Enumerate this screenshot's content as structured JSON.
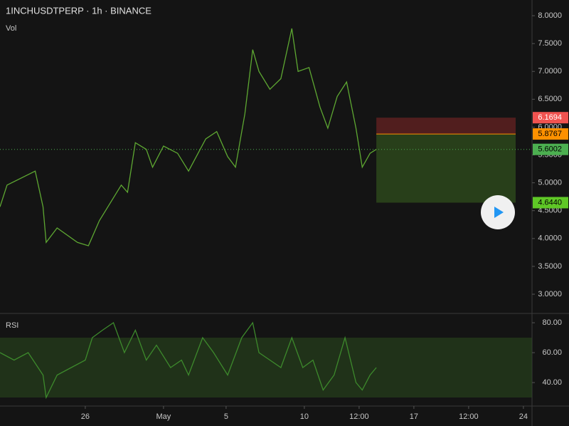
{
  "chart_data": [
    {
      "type": "line",
      "title": "1INCHUSDTPERP · 1h · BINANCE",
      "pane_label": "Vol",
      "x": [
        20.55,
        21.0,
        22.8,
        23.3,
        23.5,
        24.2,
        25.5,
        26.2,
        26.9,
        28.3,
        28.7,
        29.2,
        29.9,
        30.3,
        31.0,
        31.9,
        32.6,
        33.7,
        34.4,
        35.1,
        35.6,
        36.2,
        36.7,
        37.1,
        37.8,
        38.5,
        39.2,
        39.6,
        40.3,
        41.0,
        41.5,
        42.1,
        42.7,
        43.3,
        43.7,
        44.2,
        44.6
      ],
      "series": [
        {
          "name": "1INCHUSDTPERP",
          "color": "#5ea832",
          "values": [
            4.57,
            4.96,
            5.21,
            4.57,
            3.93,
            4.19,
            3.93,
            3.87,
            4.32,
            4.96,
            4.83,
            5.72,
            5.6,
            5.28,
            5.66,
            5.53,
            5.21,
            5.79,
            5.92,
            5.47,
            5.28,
            6.24,
            7.39,
            7.0,
            6.68,
            6.87,
            7.77,
            7.0,
            7.07,
            6.36,
            5.98,
            6.55,
            6.81,
            5.98,
            5.28,
            5.53,
            5.6
          ]
        }
      ],
      "xlim": [
        20.55,
        54.55
      ],
      "ylim": [
        2.655,
        8.282
      ],
      "yticks": [
        {
          "value": 3,
          "label": "3.0000"
        },
        {
          "value": 3.5,
          "label": "3.5000"
        },
        {
          "value": 4,
          "label": "4.0000"
        },
        {
          "value": 4.5,
          "label": "4.5000"
        },
        {
          "value": 5,
          "label": "5.0000"
        },
        {
          "value": 5.5,
          "label": "5.5000"
        },
        {
          "value": 6,
          "label": "6.0000"
        },
        {
          "value": 6.5,
          "label": "6.5000"
        },
        {
          "value": 7,
          "label": "7.0000"
        },
        {
          "value": 7.5,
          "label": "7.5000"
        },
        {
          "value": 8,
          "label": "8.0000"
        }
      ],
      "levels": [
        {
          "value": 6.1694,
          "label": "6.1694",
          "color": "#f05350",
          "text_color": "#ffffff"
        },
        {
          "value": 5.8767,
          "label": "5.8767",
          "color": "#ff9100",
          "text_color": "#000000"
        },
        {
          "value": 5.6002,
          "label": "5.6002",
          "color": "#4caf50",
          "text_color": "#000000"
        },
        {
          "value": 4.644,
          "label": "4.6440",
          "color": "#5fc826",
          "text_color": "#000000"
        }
      ]
    },
    {
      "type": "line",
      "title": "RSI",
      "x": [
        20.55,
        21.45,
        22.35,
        23.3,
        23.5,
        24.2,
        25.1,
        26.0,
        26.45,
        27.1,
        27.8,
        28.5,
        29.2,
        29.9,
        30.55,
        31.45,
        32.15,
        32.6,
        33.5,
        34.2,
        35.1,
        36.0,
        36.7,
        37.1,
        37.8,
        38.5,
        39.2,
        39.9,
        40.55,
        41.2,
        41.9,
        42.6,
        43.3,
        43.7,
        44.2,
        44.6
      ],
      "series": [
        {
          "name": "RSI",
          "color": "#3d8a2c",
          "values": [
            60,
            55,
            60,
            45,
            30,
            45,
            50,
            55,
            70,
            75,
            80,
            60,
            75,
            55,
            65,
            50,
            55,
            45,
            70,
            60,
            45,
            70,
            80,
            60,
            55,
            50,
            70,
            50,
            55,
            35,
            45,
            70,
            40,
            35,
            45,
            50
          ]
        }
      ],
      "xlim": [
        20.55,
        54.55
      ],
      "ylim": [
        24.3,
        86.2
      ],
      "band": [
        30,
        70
      ],
      "yticks": [
        {
          "value": 40,
          "label": "40.00"
        },
        {
          "value": 60,
          "label": "60.00"
        },
        {
          "value": 80,
          "label": "80.00"
        }
      ],
      "xticks": [
        {
          "value": 26,
          "label": "26"
        },
        {
          "value": 31,
          "label": "May"
        },
        {
          "value": 35,
          "label": "5"
        },
        {
          "value": 40,
          "label": "10"
        },
        {
          "value": 43.5,
          "label": "12:00"
        },
        {
          "value": 47,
          "label": "17"
        },
        {
          "value": 50.5,
          "label": "12:00"
        },
        {
          "value": 54,
          "label": "24"
        }
      ]
    }
  ]
}
